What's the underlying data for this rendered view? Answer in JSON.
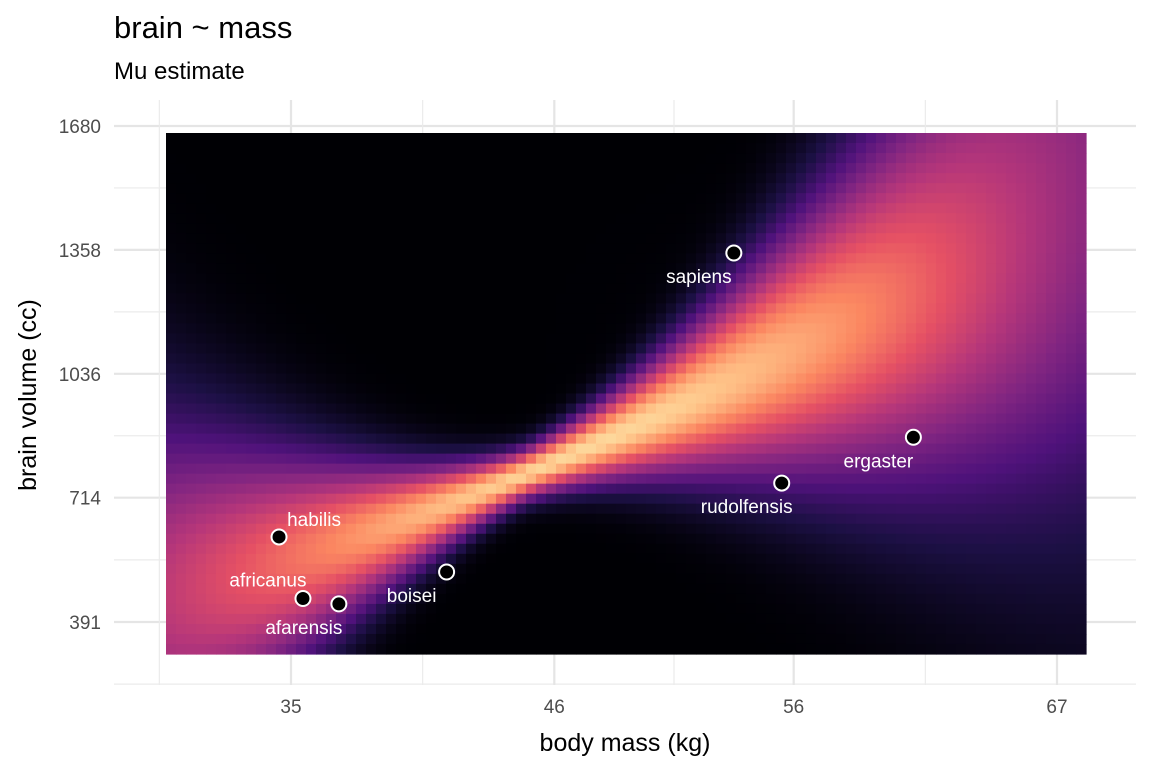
{
  "chart_data": {
    "type": "heatmap",
    "title": "brain ~ mass",
    "subtitle": "Mu estimate",
    "xlabel": "body mass (kg)",
    "ylabel": "brain volume (cc)",
    "x_ticks": [
      35,
      46,
      56,
      67
    ],
    "y_ticks": [
      391,
      714,
      1036,
      1358,
      1680
    ],
    "xlim": [
      30,
      69.7
    ],
    "ylim": [
      264,
      1662
    ],
    "colormap": [
      "#000004",
      "#1c1044",
      "#4f127b",
      "#812581",
      "#b5367a",
      "#e55064",
      "#fb8761",
      "#fec287",
      "#fcfdbf"
    ],
    "grid": true,
    "points": [
      {
        "name": "afarensis",
        "x": 37.0,
        "y": 438
      },
      {
        "name": "africanus",
        "x": 35.5,
        "y": 452
      },
      {
        "name": "habilis",
        "x": 34.5,
        "y": 612
      },
      {
        "name": "boisei",
        "x": 41.5,
        "y": 521
      },
      {
        "name": "rudolfensis",
        "x": 55.5,
        "y": 752
      },
      {
        "name": "ergaster",
        "x": 61.0,
        "y": 871
      },
      {
        "name": "sapiens",
        "x": 53.5,
        "y": 1350
      }
    ]
  }
}
